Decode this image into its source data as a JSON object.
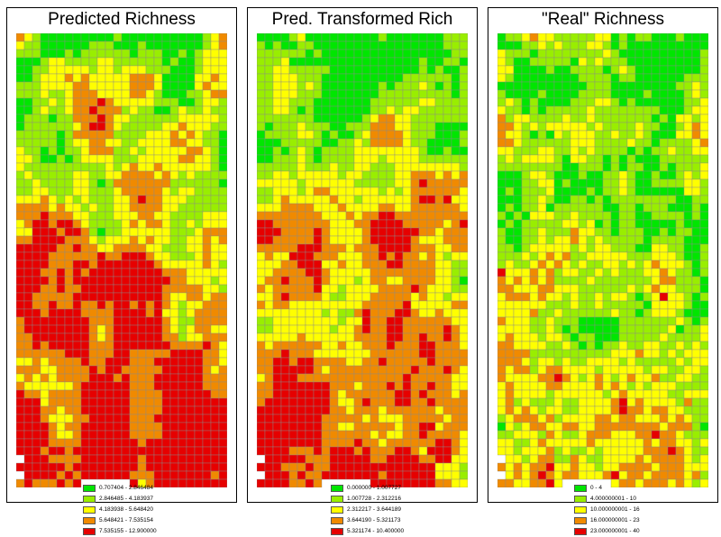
{
  "colors": {
    "c1": "#00e600",
    "c2": "#99ee00",
    "c3": "#ffff00",
    "c4": "#f08a00",
    "c5": "#e60000",
    "gridline": "#8a8a8a"
  },
  "panels": [
    {
      "title": "Predicted Richness",
      "bias": 0.45,
      "legend": [
        {
          "label": "0.707404 - 2.846484",
          "color": "#00e600"
        },
        {
          "label": "2.846485 - 4.183937",
          "color": "#99ee00"
        },
        {
          "label": "4.183938 - 5.648420",
          "color": "#ffff00"
        },
        {
          "label": "5.648421 - 7.535154",
          "color": "#f08a00"
        },
        {
          "label": "7.535155 - 12.900000",
          "color": "#e60000"
        }
      ]
    },
    {
      "title": "Pred. Transformed Rich",
      "bias": 0.35,
      "legend": [
        {
          "label": "0.000000 - 1.007727",
          "color": "#00e600"
        },
        {
          "label": "1.007728 - 2.312216",
          "color": "#99ee00"
        },
        {
          "label": "2.312217 - 3.644189",
          "color": "#ffff00"
        },
        {
          "label": "3.644190 - 5.321173",
          "color": "#f08a00"
        },
        {
          "label": "5.321174 - 10.400000",
          "color": "#e60000"
        }
      ]
    },
    {
      "title": "\"Real\" Richness",
      "bias": 0.0,
      "legend": [
        {
          "label": "0 - 4",
          "color": "#00e600"
        },
        {
          "label": "4.000000001 - 10",
          "color": "#99ee00"
        },
        {
          "label": "10.000000001 - 16",
          "color": "#ffff00"
        },
        {
          "label": "16.000000001 - 23",
          "color": "#f08a00"
        },
        {
          "label": "23.000000001 - 40",
          "color": "#e60000"
        }
      ]
    }
  ]
}
